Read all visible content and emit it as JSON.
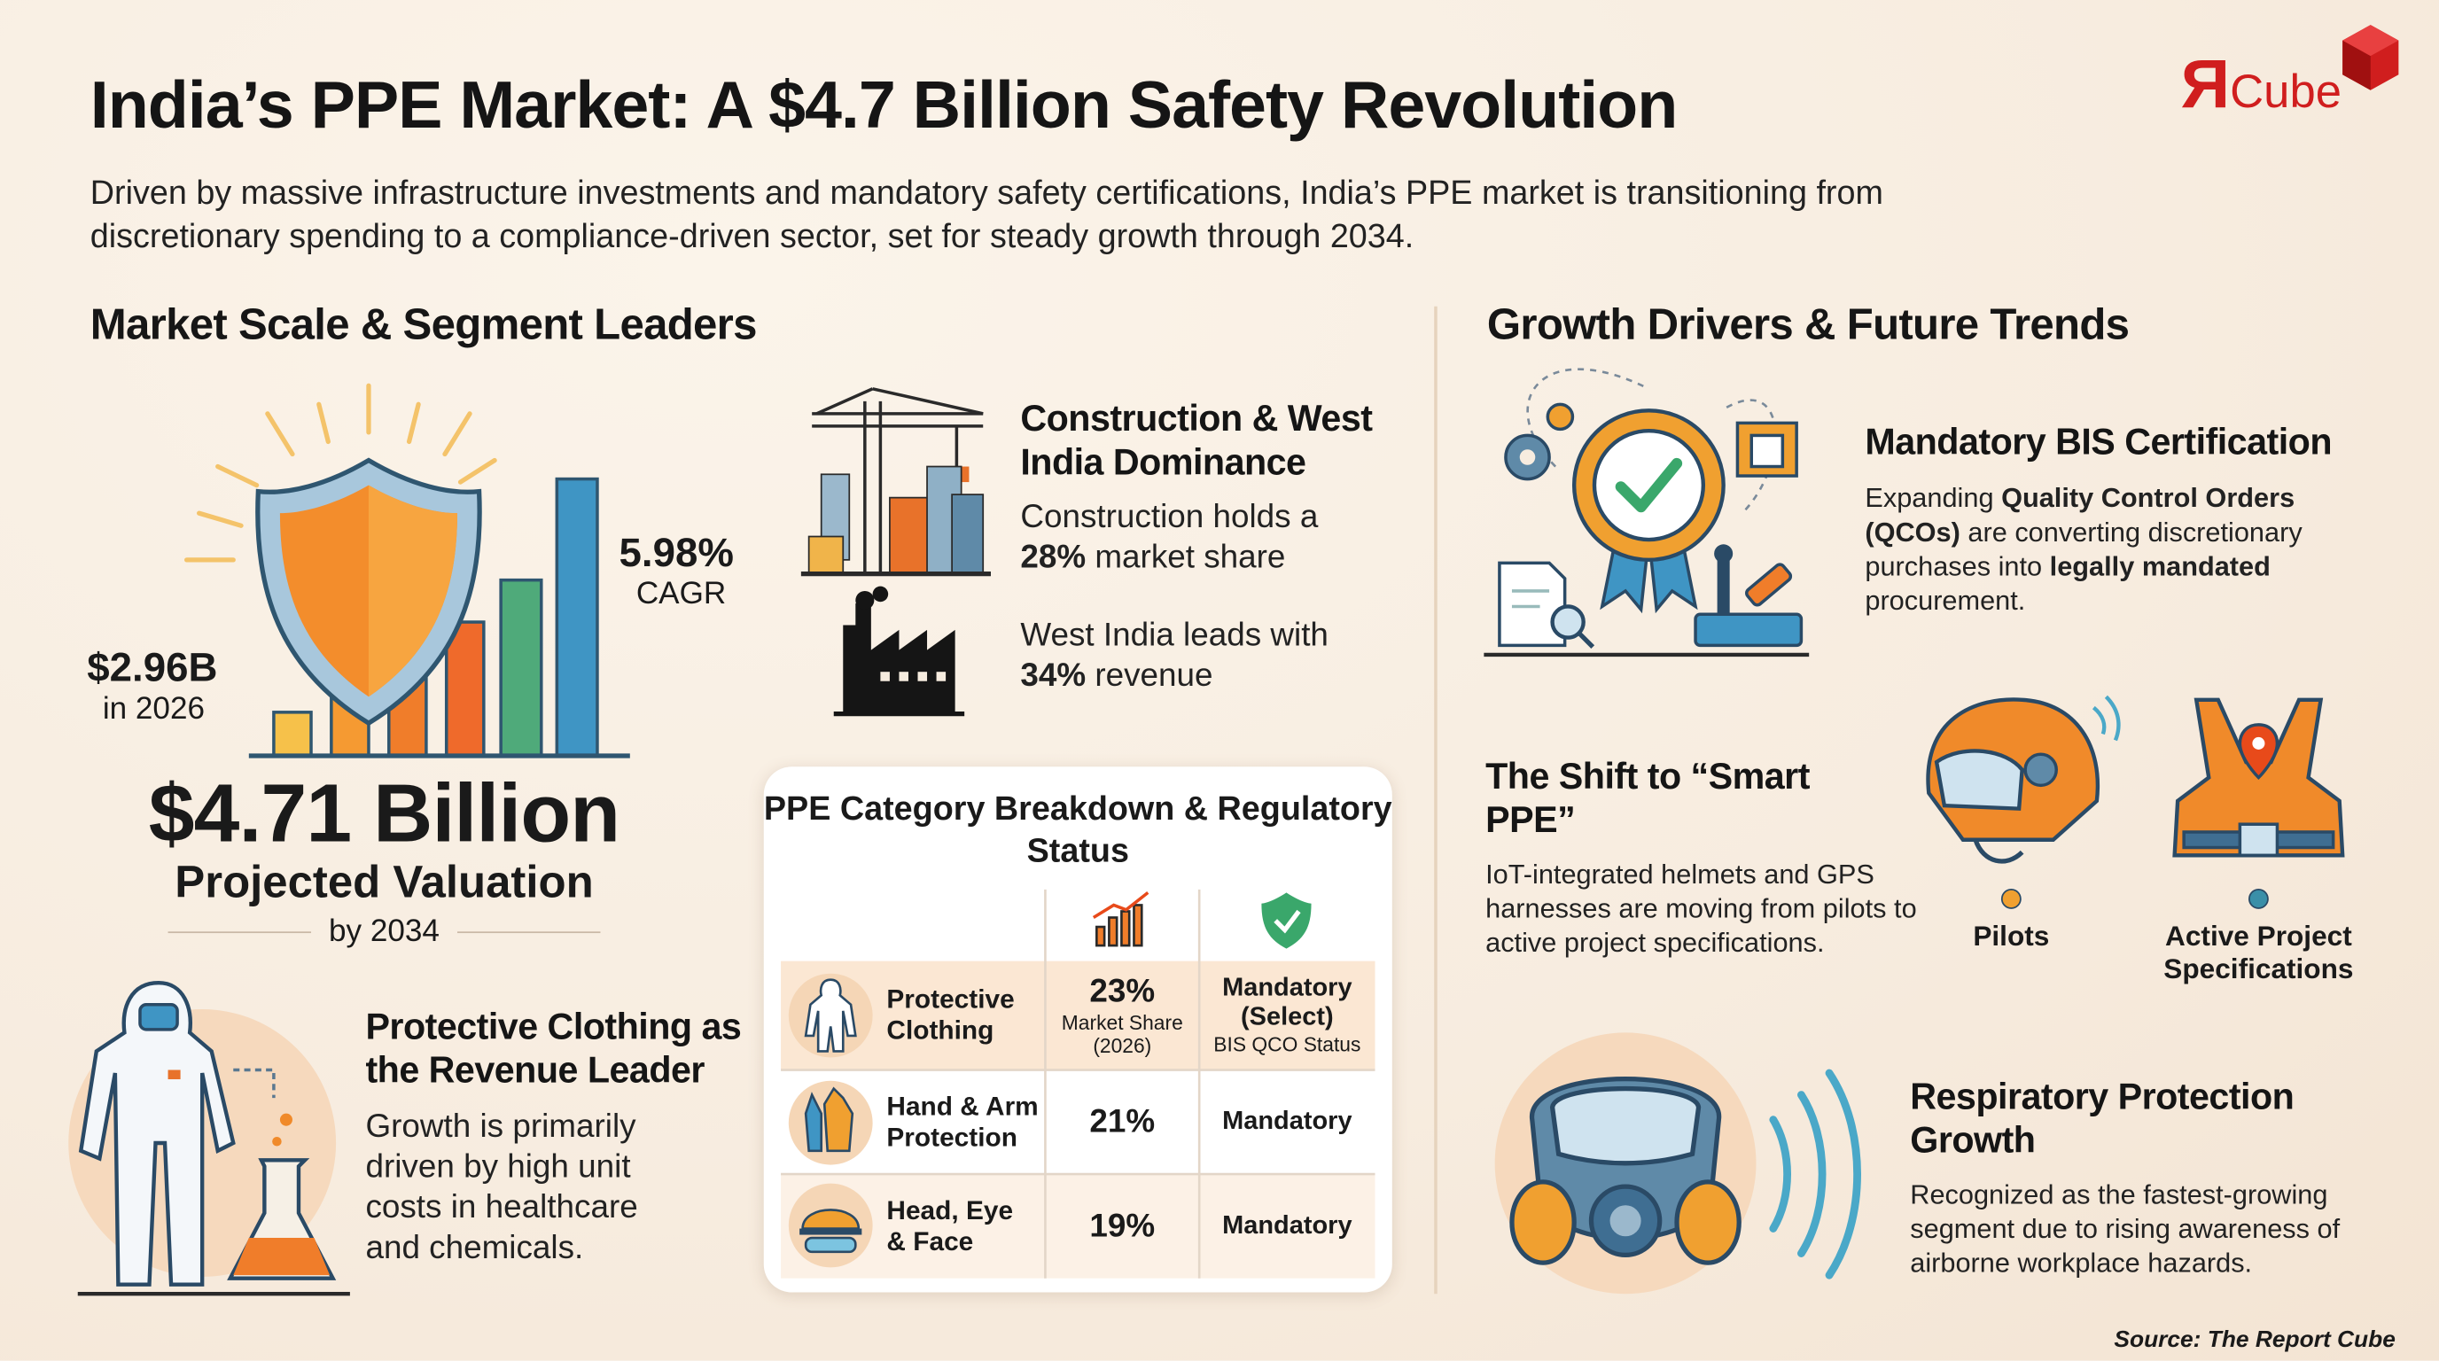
{
  "header": {
    "title": "India’s PPE Market: A $4.7 Billion Safety Revolution",
    "subtitle": "Driven by massive infrastructure investments and mandatory safety certifications, India’s PPE market is transitioning from discretionary spending to a compliance-driven sector, set for steady growth through 2034.",
    "logo_mark": "Я",
    "logo_text": "Cube"
  },
  "market": {
    "heading": "Market Scale & Segment Leaders",
    "cagr": "5.98%",
    "cagr_label": "CAGR",
    "start_value": "$2.96B",
    "start_label": "in 2026",
    "projection": "$4.71 Billion",
    "projection_label": "Projected Valuation",
    "projection_year": "by 2034"
  },
  "construction": {
    "title": "Construction & West India Dominance",
    "share_text": [
      "Construction holds a ",
      "28%",
      " market share"
    ],
    "region_text": [
      "West India leads with ",
      "34%",
      " revenue"
    ]
  },
  "clothing": {
    "title": "Protective Clothing as the Revenue Leader",
    "text": "Growth is primarily driven by high unit costs in healthcare and chemicals."
  },
  "table": {
    "title": "PPE Category Breakdown & Regulatory Status",
    "rows": [
      {
        "category": "Protective Clothing",
        "share": "23%",
        "share_note": "Market Share (2026)",
        "status": "Mandatory (Select)",
        "status_note": "BIS QCO Status"
      },
      {
        "category": "Hand & Arm Protection",
        "share": "21%",
        "status": "Mandatory"
      },
      {
        "category": "Head, Eye & Face",
        "share": "19%",
        "status": "Mandatory"
      }
    ]
  },
  "trends": {
    "heading": "Growth Drivers & Future Trends",
    "bis": {
      "title": "Mandatory BIS Certification",
      "text": [
        "Expanding ",
        "Quality Control Orders (QCOs)",
        " are converting discretionary purchases into ",
        "legally mandated",
        " procurement."
      ]
    },
    "smart": {
      "title": "The Shift to “Smart PPE”",
      "text": "IoT-integrated helmets and GPS harnesses are moving from pilots to active project specifications.",
      "labels": [
        "Pilots",
        "Active Project Specifications"
      ]
    },
    "respiratory": {
      "title": "Respiratory Protection Growth",
      "text": "Recognized as the fastest-growing segment due to rising awareness of airborne workplace hazards."
    }
  },
  "source": "Source: The Report Cube"
}
